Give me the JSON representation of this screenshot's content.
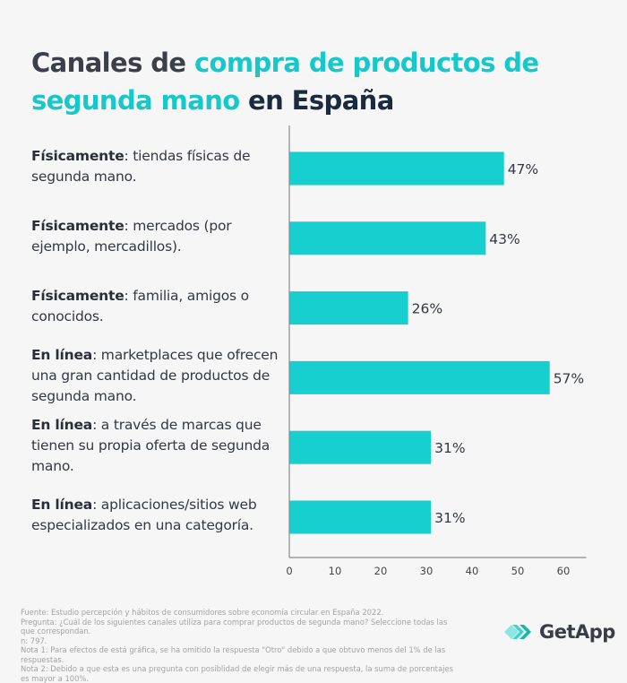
{
  "title": {
    "part1": "Canales de ",
    "part2": "compra de productos de segunda mano",
    "part3": " en España"
  },
  "colors": {
    "bar": "#17cfcf",
    "accent": "#17c7c9",
    "title_dark": "#1b2a3f",
    "axis": "#8a8a8a",
    "value_label": "#333841"
  },
  "chart_data": {
    "type": "bar",
    "orientation": "horizontal",
    "title": "Canales de compra de productos de segunda mano en España",
    "categories": [
      {
        "bold": "Físicamente",
        "text": ": tiendas físicas de segunda mano."
      },
      {
        "bold": "Físicamente",
        "text": ": mercados (por ejemplo, mercadillos)."
      },
      {
        "bold": "Físicamente",
        "text": ": familia, amigos o conocidos."
      },
      {
        "bold": "En línea",
        "text": ": marketplaces que ofrecen una gran cantidad de productos de segunda mano."
      },
      {
        "bold": "En línea",
        "text": ": a través de marcas que tienen su propia oferta de segunda mano."
      },
      {
        "bold": "En línea",
        "text": ": aplicaciones/sitios web especializados en una categoría."
      }
    ],
    "values": [
      47,
      43,
      26,
      57,
      31,
      31
    ],
    "value_labels": [
      "47%",
      "43%",
      "26%",
      "57%",
      "31%",
      "31%"
    ],
    "xlim": [
      0,
      65
    ],
    "xticks": [
      0,
      10,
      20,
      30,
      40,
      50,
      60
    ],
    "xlabel": "",
    "ylabel": "",
    "grid": false,
    "legend": "none"
  },
  "footer": {
    "source": "Fuente: Estudio percepción y hábitos de consumidores sobre economía circular en España 2022.",
    "question": "Pregunta: ¿Cuál de los siguientes canales utiliza para comprar productos de segunda mano? Seleccione todas las que correspondan.",
    "n": "n: 797.",
    "note1": "Nota 1: Para efectos de está gráfica, se ha omitido la respuesta \"Otro\" debido a que obtuvo menos del 1% de las respuestas.",
    "note2": "Nota 2: Debido a que esta es una pregunta con posiblidad de elegir más de una respuesta, la suma de porcentajes es mayor a 100%."
  },
  "brand": {
    "name": "GetApp",
    "icon": "getapp-chevrons-icon"
  }
}
